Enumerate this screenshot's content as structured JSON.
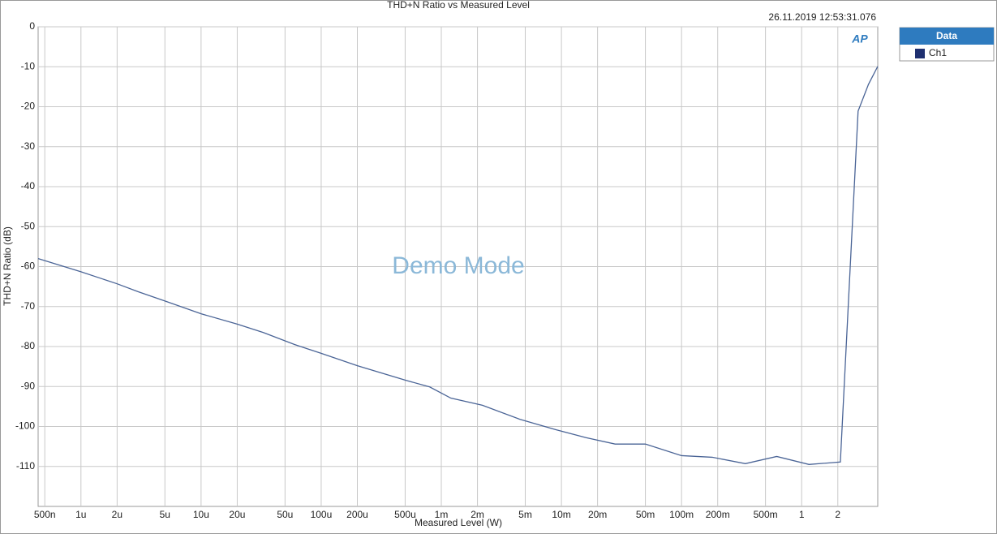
{
  "chart_data": {
    "type": "line",
    "title": "THD+N Ratio vs Measured Level",
    "timestamp": "26.11.2019 12:53:31.076",
    "watermark": "Demo Mode",
    "logo": "AP",
    "x_label": "Measured Level (W)",
    "y_label": "THD+N Ratio (dB)",
    "legend_title": "Data",
    "x_scale": "log",
    "grid": true,
    "xlim": [
      4.4e-07,
      4.3
    ],
    "ylim": [
      -120,
      0
    ],
    "xticks": [
      {
        "value": 5e-07,
        "label": "500n"
      },
      {
        "value": 1e-06,
        "label": "1u"
      },
      {
        "value": 2e-06,
        "label": "2u"
      },
      {
        "value": 5e-06,
        "label": "5u"
      },
      {
        "value": 1e-05,
        "label": "10u"
      },
      {
        "value": 2e-05,
        "label": "20u"
      },
      {
        "value": 5e-05,
        "label": "50u"
      },
      {
        "value": 0.0001,
        "label": "100u"
      },
      {
        "value": 0.0002,
        "label": "200u"
      },
      {
        "value": 0.0005,
        "label": "500u"
      },
      {
        "value": 0.001,
        "label": "1m"
      },
      {
        "value": 0.002,
        "label": "2m"
      },
      {
        "value": 0.005,
        "label": "5m"
      },
      {
        "value": 0.01,
        "label": "10m"
      },
      {
        "value": 0.02,
        "label": "20m"
      },
      {
        "value": 0.05,
        "label": "50m"
      },
      {
        "value": 0.1,
        "label": "100m"
      },
      {
        "value": 0.2,
        "label": "200m"
      },
      {
        "value": 0.5,
        "label": "500m"
      },
      1,
      2
    ],
    "yticks": [
      0,
      -10,
      -20,
      -30,
      -40,
      -50,
      -60,
      -70,
      -80,
      -90,
      -100,
      -110
    ],
    "x": [
      4.4e-07,
      1e-06,
      2e-06,
      3e-06,
      5e-06,
      1e-05,
      2e-05,
      3.3e-05,
      6e-05,
      0.0001,
      0.0002,
      0.0005,
      0.0008,
      0.0012,
      0.0022,
      0.0045,
      0.009,
      0.016,
      0.028,
      0.05,
      0.1,
      0.18,
      0.34,
      0.62,
      1.15,
      2.1,
      2.95,
      3.6,
      4.3
    ],
    "series": [
      {
        "name": "Ch1",
        "color": "#4a6496",
        "values": [
          -58.0,
          -61.3,
          -64.3,
          -66.3,
          -68.6,
          -71.8,
          -74.4,
          -76.5,
          -79.5,
          -81.7,
          -84.8,
          -88.4,
          -90.1,
          -92.9,
          -94.7,
          -98.2,
          -100.8,
          -102.8,
          -104.4,
          -104.4,
          -107.3,
          -107.7,
          -109.3,
          -107.5,
          -109.5,
          -108.9,
          -21.1,
          -14.4,
          -9.9
        ]
      }
    ]
  }
}
